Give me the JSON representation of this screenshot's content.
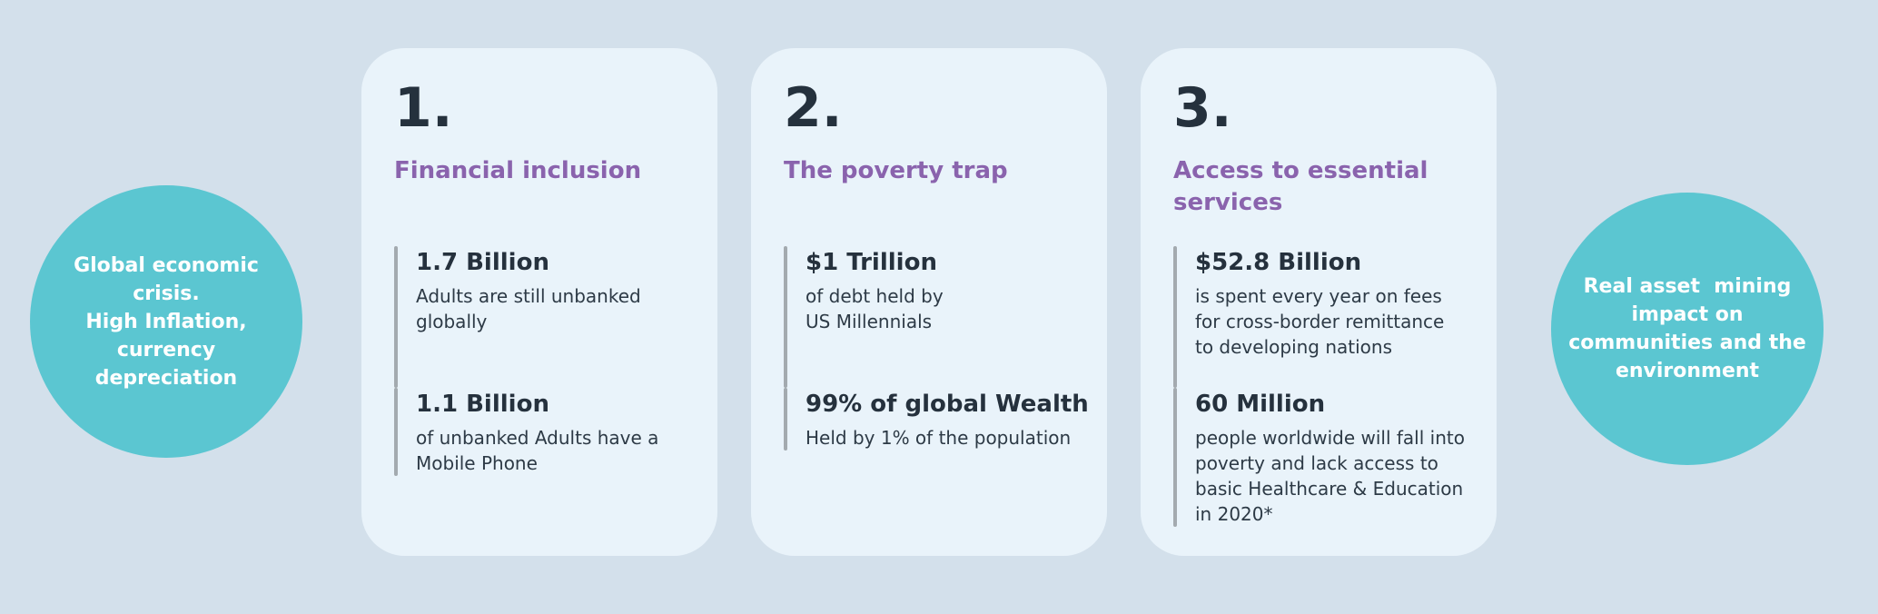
{
  "left_circle": {
    "text": "Global economic\ncrisis.\nHigh Inflation,\ncurrency\ndepreciation"
  },
  "right_circle": {
    "text": "Real asset  mining\nimpact on\ncommunities and the\nenvironment"
  },
  "cards": [
    {
      "number": "1.",
      "title": "Financial inclusion",
      "stats": [
        {
          "value": "1.7 Billion",
          "description": "Adults are still unbanked globally"
        },
        {
          "value": "1.1 Billion",
          "description": "of unbanked Adults have a Mobile Phone"
        }
      ]
    },
    {
      "number": "2.",
      "title": "The poverty trap",
      "stats": [
        {
          "value": "$1 Trillion",
          "description": "of debt held by\nUS Millennials"
        },
        {
          "value": "99% of global Wealth",
          "description": "Held by 1% of the population"
        }
      ]
    },
    {
      "number": "3.",
      "title": "Access to essential\nservices",
      "stats": [
        {
          "value": "$52.8 Billion",
          "description": "is spent every year on fees for cross-border remittance to developing nations"
        },
        {
          "value": "60 Million",
          "description": "people worldwide will fall into poverty and lack access to basic Healthcare & Education in 2020*"
        }
      ]
    }
  ],
  "colors": {
    "background": "#D3E0EB",
    "card_background": "#E9F3FA",
    "circle_teal": "#5BC6D1",
    "circle_text": "#FFFFFF",
    "heading_purple": "#8A63AD",
    "dark_navy": "#25313D",
    "body_text": "#2D3A46",
    "stat_bar_gray": "#A3AAAF"
  }
}
